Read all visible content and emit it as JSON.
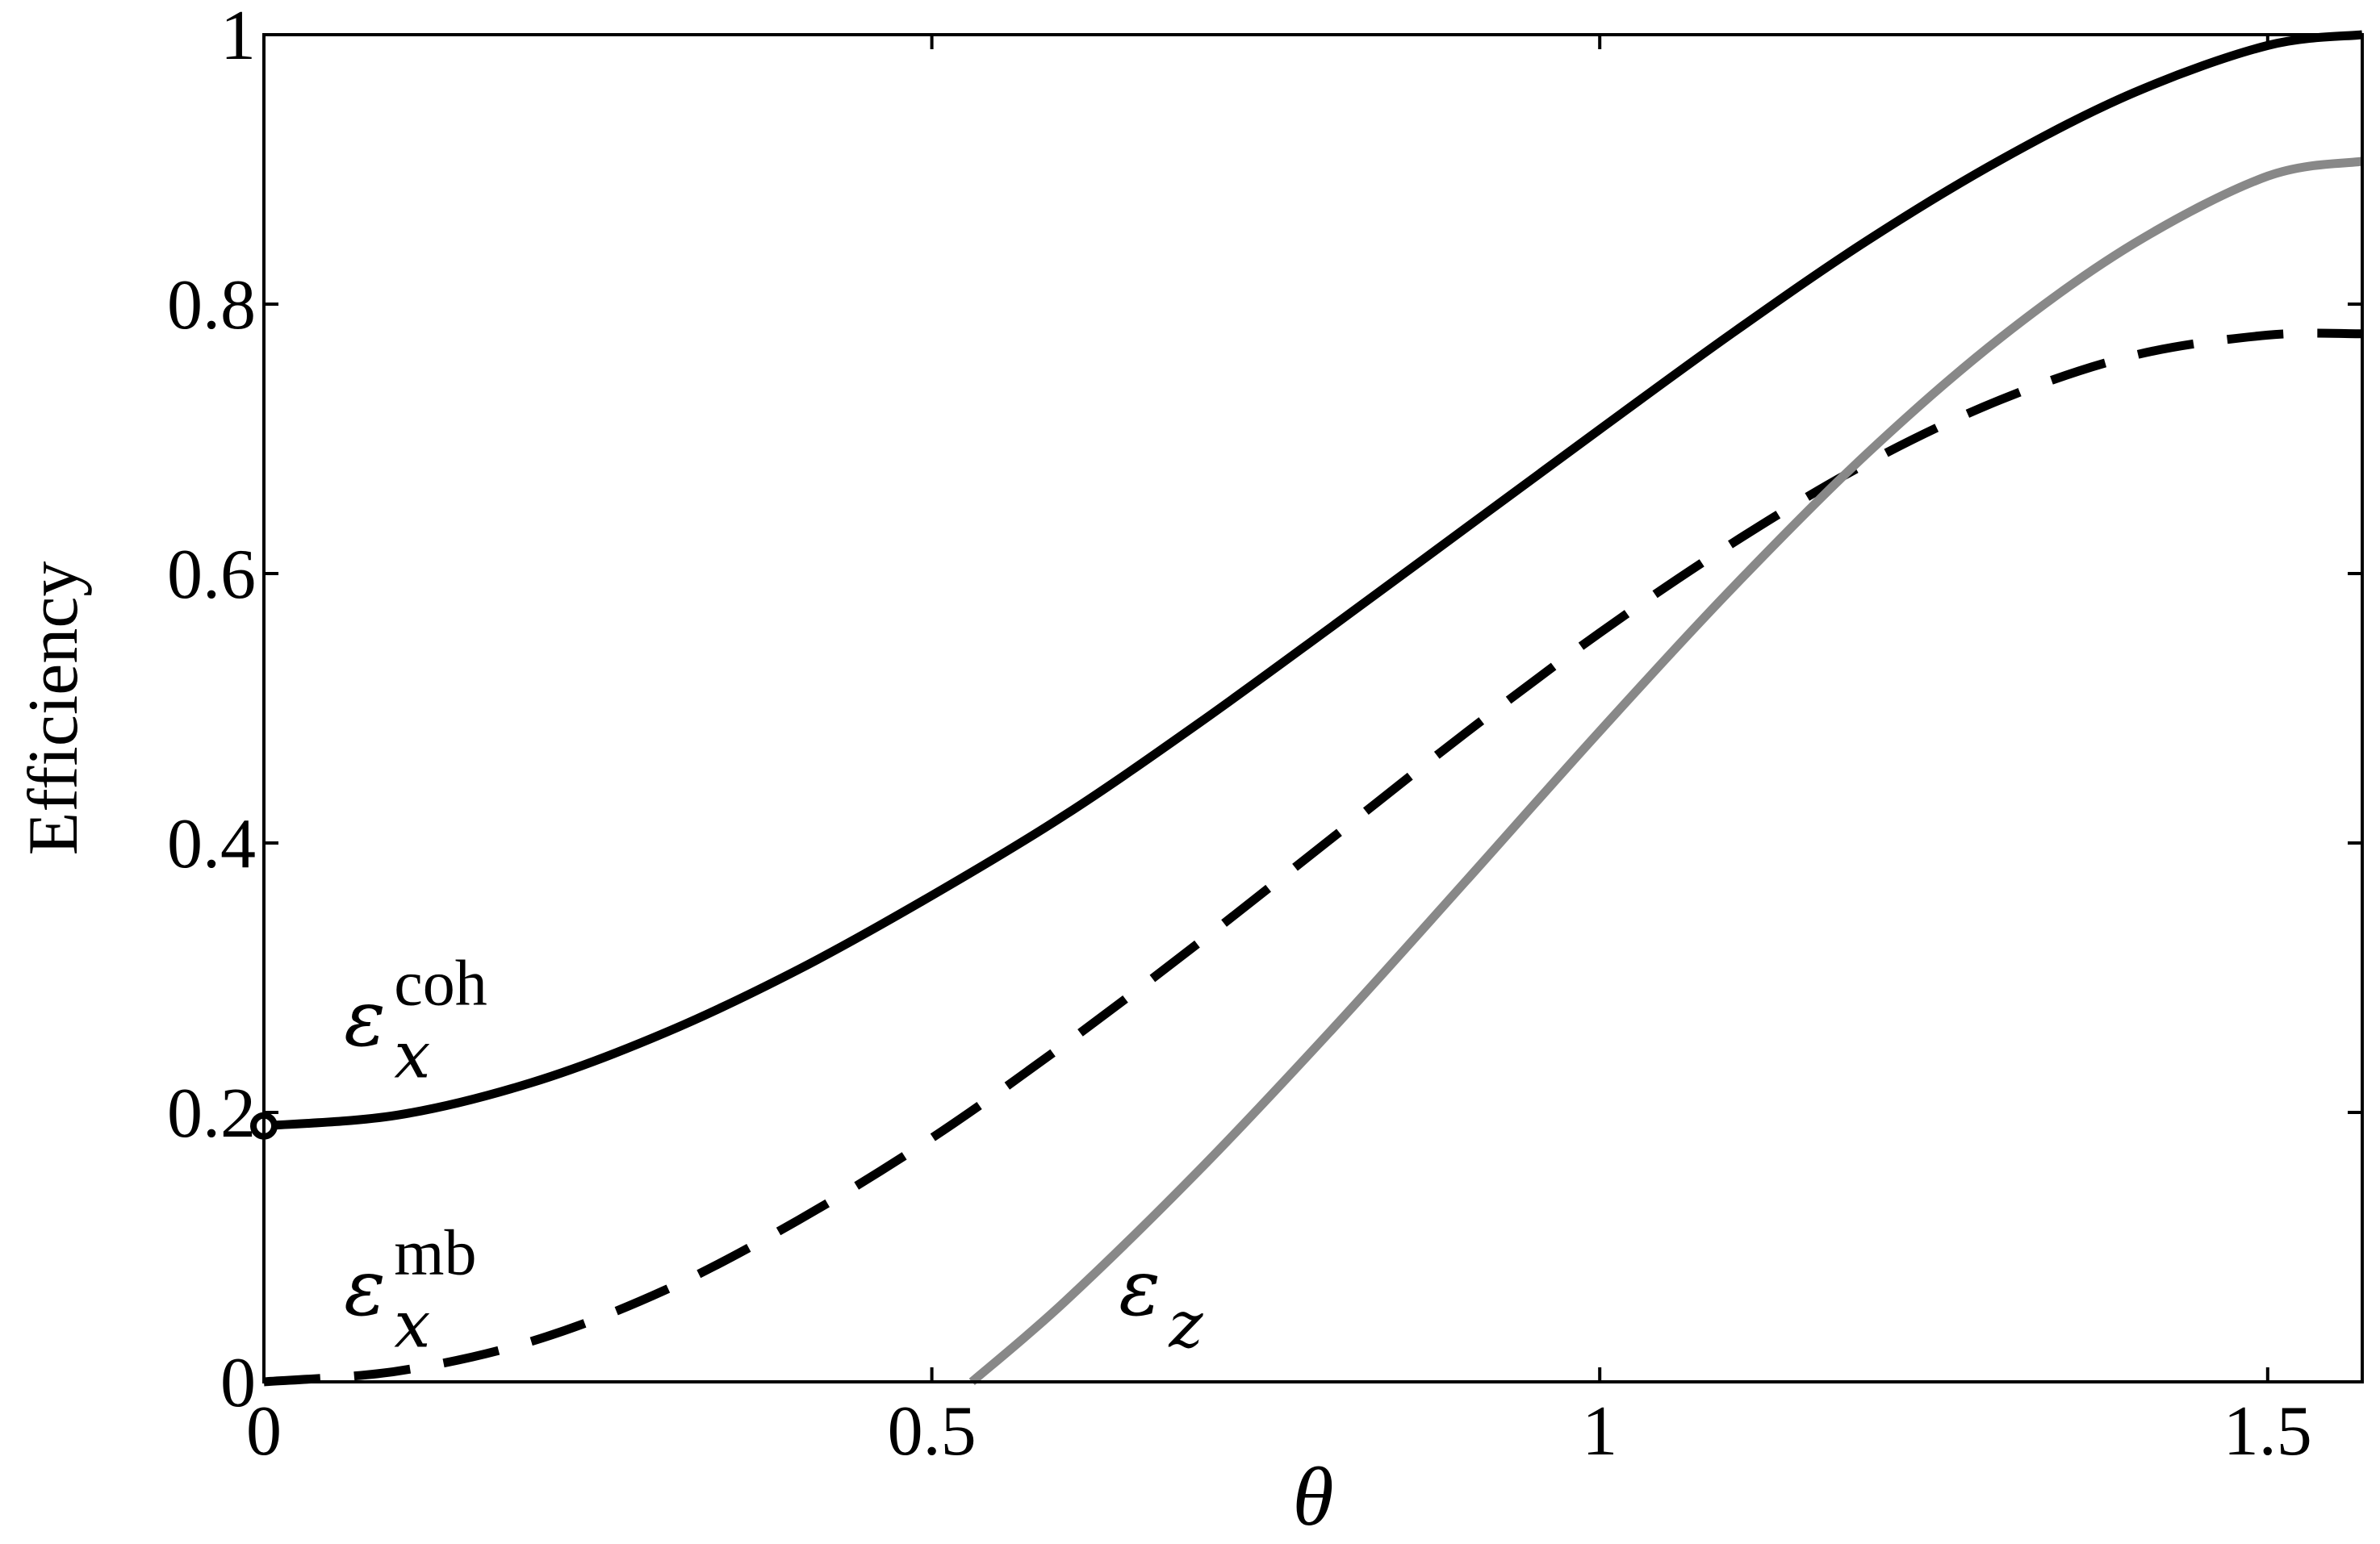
{
  "chart_data": {
    "type": "line",
    "xlabel": "θ",
    "ylabel": "Efficiency",
    "xlim": [
      0,
      1.5708
    ],
    "ylim": [
      0,
      1
    ],
    "xticks": [
      0,
      0.5,
      1,
      1.5
    ],
    "xtick_labels": [
      "0",
      "0.5",
      "1",
      "1.5"
    ],
    "yticks": [
      0,
      0.2,
      0.4,
      0.6,
      0.8,
      1
    ],
    "ytick_labels": [
      "0",
      "0.2",
      "0.4",
      "0.6",
      "0.8",
      "1"
    ],
    "grid": false,
    "series": [
      {
        "key": "coh",
        "color": "#000000",
        "dash": "solid",
        "x": [
          0,
          0.1,
          0.2,
          0.3,
          0.4,
          0.5,
          0.6,
          0.7,
          0.8,
          0.9,
          1.0,
          1.1,
          1.2,
          1.3,
          1.4,
          1.5,
          1.5708
        ],
        "y": [
          0.19,
          0.198,
          0.222,
          0.259,
          0.306,
          0.361,
          0.421,
          0.489,
          0.561,
          0.634,
          0.707,
          0.779,
          0.847,
          0.907,
          0.957,
          0.992,
          1.0
        ]
      },
      {
        "key": "mb",
        "color": "#000000",
        "dash": "dashed",
        "x": [
          0,
          0.1,
          0.2,
          0.3,
          0.4,
          0.5,
          0.6,
          0.7,
          0.8,
          0.9,
          1.0,
          1.1,
          1.2,
          1.3,
          1.4,
          1.5,
          1.5708
        ],
        "y": [
          0.0,
          0.008,
          0.03,
          0.068,
          0.12,
          0.181,
          0.251,
          0.326,
          0.404,
          0.482,
          0.556,
          0.623,
          0.682,
          0.729,
          0.762,
          0.777,
          0.778
        ]
      },
      {
        "key": "z",
        "color": "#888888",
        "dash": "solid",
        "x": [
          0.53,
          0.6,
          0.7,
          0.8,
          0.9,
          1.0,
          1.1,
          1.2,
          1.3,
          1.4,
          1.5,
          1.5708
        ],
        "y": [
          0.0,
          0.06,
          0.157,
          0.262,
          0.372,
          0.483,
          0.59,
          0.689,
          0.775,
          0.845,
          0.895,
          0.906
        ]
      }
    ],
    "marker": {
      "x": 0,
      "y": 0.19
    },
    "annotations": [
      {
        "key": "coh",
        "base": "ε",
        "sub": "x",
        "sup": "coh",
        "x": 0.06,
        "y": 0.25
      },
      {
        "key": "mb",
        "base": "ε",
        "sub": "x",
        "sup": "mb",
        "x": 0.06,
        "y": 0.05
      },
      {
        "key": "z",
        "base": "ε",
        "sub": "z",
        "sup": "",
        "x": 0.64,
        "y": 0.05
      }
    ]
  }
}
